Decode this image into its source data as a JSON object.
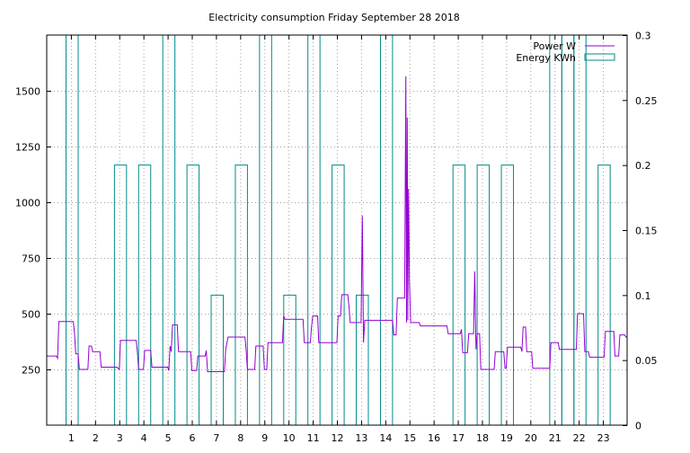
{
  "chart_data": {
    "type": "line",
    "title": "Electricity consumption Friday September 28 2018",
    "x_ticks": [
      "1",
      "2",
      "3",
      "4",
      "5",
      "6",
      "7",
      "8",
      "9",
      "10",
      "11",
      "12",
      "13",
      "14",
      "15",
      "16",
      "17",
      "18",
      "19",
      "20",
      "21",
      "22",
      "23"
    ],
    "xlim": [
      0,
      24
    ],
    "y_left": {
      "lim": [
        0,
        1750
      ],
      "ticks": [
        "250",
        "500",
        "750",
        "1000",
        "1250",
        "1500"
      ],
      "tick_values": [
        250,
        500,
        750,
        1000,
        1250,
        1500
      ]
    },
    "y_right": {
      "lim": [
        0,
        0.3
      ],
      "ticks": [
        "0",
        "0.05",
        "0.1",
        "0.15",
        "0.2",
        "0.25",
        "0.3"
      ],
      "tick_values": [
        0,
        0.05,
        0.1,
        0.15,
        0.2,
        0.25,
        0.3
      ]
    },
    "grid": true,
    "legend_position": "top-right",
    "series": [
      {
        "name": "Power W",
        "axis": "left",
        "color": "#9400d3",
        "style": "line",
        "points": [
          [
            0,
            310
          ],
          [
            0.4,
            310
          ],
          [
            0.45,
            300
          ],
          [
            0.5,
            465
          ],
          [
            1.1,
            465
          ],
          [
            1.15,
            410
          ],
          [
            1.2,
            320
          ],
          [
            1.3,
            320
          ],
          [
            1.35,
            250
          ],
          [
            1.7,
            250
          ],
          [
            1.75,
            355
          ],
          [
            1.85,
            355
          ],
          [
            1.9,
            330
          ],
          [
            2.2,
            330
          ],
          [
            2.25,
            260
          ],
          [
            2.9,
            260
          ],
          [
            3.0,
            250
          ],
          [
            3.05,
            380
          ],
          [
            3.7,
            380
          ],
          [
            3.75,
            330
          ],
          [
            3.8,
            250
          ],
          [
            4.0,
            250
          ],
          [
            4.05,
            335
          ],
          [
            4.3,
            335
          ],
          [
            4.35,
            260
          ],
          [
            5.0,
            260
          ],
          [
            5.05,
            245
          ],
          [
            5.1,
            355
          ],
          [
            5.15,
            330
          ],
          [
            5.2,
            450
          ],
          [
            5.4,
            450
          ],
          [
            5.45,
            330
          ],
          [
            5.95,
            330
          ],
          [
            6.0,
            245
          ],
          [
            6.2,
            245
          ],
          [
            6.25,
            310
          ],
          [
            6.55,
            310
          ],
          [
            6.6,
            335
          ],
          [
            6.65,
            240
          ],
          [
            7.35,
            240
          ],
          [
            7.4,
            340
          ],
          [
            7.5,
            395
          ],
          [
            8.2,
            395
          ],
          [
            8.25,
            330
          ],
          [
            8.3,
            250
          ],
          [
            8.6,
            250
          ],
          [
            8.65,
            355
          ],
          [
            8.95,
            355
          ],
          [
            9.0,
            250
          ],
          [
            9.1,
            250
          ],
          [
            9.15,
            370
          ],
          [
            9.75,
            370
          ],
          [
            9.8,
            490
          ],
          [
            9.85,
            475
          ],
          [
            10.6,
            475
          ],
          [
            10.65,
            370
          ],
          [
            10.9,
            370
          ],
          [
            10.95,
            440
          ],
          [
            11.0,
            490
          ],
          [
            11.2,
            490
          ],
          [
            11.25,
            370
          ],
          [
            12.0,
            370
          ],
          [
            12.05,
            490
          ],
          [
            12.15,
            490
          ],
          [
            12.2,
            585
          ],
          [
            12.45,
            585
          ],
          [
            12.5,
            530
          ],
          [
            12.55,
            460
          ],
          [
            13.0,
            460
          ],
          [
            13.05,
            940
          ],
          [
            13.1,
            370
          ],
          [
            13.15,
            470
          ],
          [
            14.3,
            470
          ],
          [
            14.35,
            405
          ],
          [
            14.45,
            405
          ],
          [
            14.5,
            570
          ],
          [
            14.8,
            570
          ],
          [
            14.85,
            1565
          ],
          [
            14.88,
            460
          ],
          [
            14.91,
            1380
          ],
          [
            14.93,
            470
          ],
          [
            14.96,
            1060
          ],
          [
            15.0,
            640
          ],
          [
            15.05,
            460
          ],
          [
            15.4,
            460
          ],
          [
            15.45,
            445
          ],
          [
            16.55,
            445
          ],
          [
            16.6,
            410
          ],
          [
            17.1,
            410
          ],
          [
            17.15,
            430
          ],
          [
            17.2,
            325
          ],
          [
            17.4,
            325
          ],
          [
            17.45,
            410
          ],
          [
            17.65,
            410
          ],
          [
            17.7,
            690
          ],
          [
            17.75,
            340
          ],
          [
            17.8,
            410
          ],
          [
            17.9,
            410
          ],
          [
            17.95,
            250
          ],
          [
            18.5,
            250
          ],
          [
            18.55,
            330
          ],
          [
            18.9,
            330
          ],
          [
            18.95,
            255
          ],
          [
            19.0,
            255
          ],
          [
            19.05,
            350
          ],
          [
            19.6,
            350
          ],
          [
            19.65,
            330
          ],
          [
            19.7,
            440
          ],
          [
            19.8,
            440
          ],
          [
            19.85,
            330
          ],
          [
            20.05,
            330
          ],
          [
            20.1,
            255
          ],
          [
            20.8,
            255
          ],
          [
            20.85,
            370
          ],
          [
            21.15,
            370
          ],
          [
            21.2,
            340
          ],
          [
            21.9,
            340
          ],
          [
            21.95,
            500
          ],
          [
            22.2,
            500
          ],
          [
            22.25,
            330
          ],
          [
            22.4,
            330
          ],
          [
            22.45,
            305
          ],
          [
            23.05,
            305
          ],
          [
            23.1,
            420
          ],
          [
            23.45,
            420
          ],
          [
            23.5,
            310
          ],
          [
            23.65,
            310
          ],
          [
            23.7,
            405
          ],
          [
            23.9,
            405
          ],
          [
            23.95,
            395
          ],
          [
            24,
            395
          ]
        ]
      },
      {
        "name": "Energy KWh",
        "axis": "right",
        "color": "#008b8b",
        "style": "steps",
        "bars": [
          [
            0.8,
            1.3,
            0.3
          ],
          [
            2.8,
            3.3,
            0.2
          ],
          [
            3.8,
            4.3,
            0.2
          ],
          [
            4.8,
            5.3,
            0.3
          ],
          [
            5.8,
            6.3,
            0.2
          ],
          [
            6.8,
            7.3,
            0.1
          ],
          [
            7.8,
            8.3,
            0.2
          ],
          [
            8.8,
            9.3,
            0.3
          ],
          [
            9.8,
            10.3,
            0.1
          ],
          [
            10.8,
            11.3,
            0.3
          ],
          [
            11.8,
            12.3,
            0.2
          ],
          [
            12.8,
            13.3,
            0.1
          ],
          [
            13.8,
            14.3,
            0.3
          ],
          [
            16.8,
            17.3,
            0.2
          ],
          [
            17.8,
            18.3,
            0.2
          ],
          [
            18.8,
            19.3,
            0.2
          ],
          [
            20.8,
            21.3,
            0.3
          ],
          [
            21.3,
            21.8,
            0.3
          ],
          [
            21.8,
            22.3,
            0.3
          ],
          [
            22.8,
            23.3,
            0.2
          ]
        ]
      }
    ]
  }
}
